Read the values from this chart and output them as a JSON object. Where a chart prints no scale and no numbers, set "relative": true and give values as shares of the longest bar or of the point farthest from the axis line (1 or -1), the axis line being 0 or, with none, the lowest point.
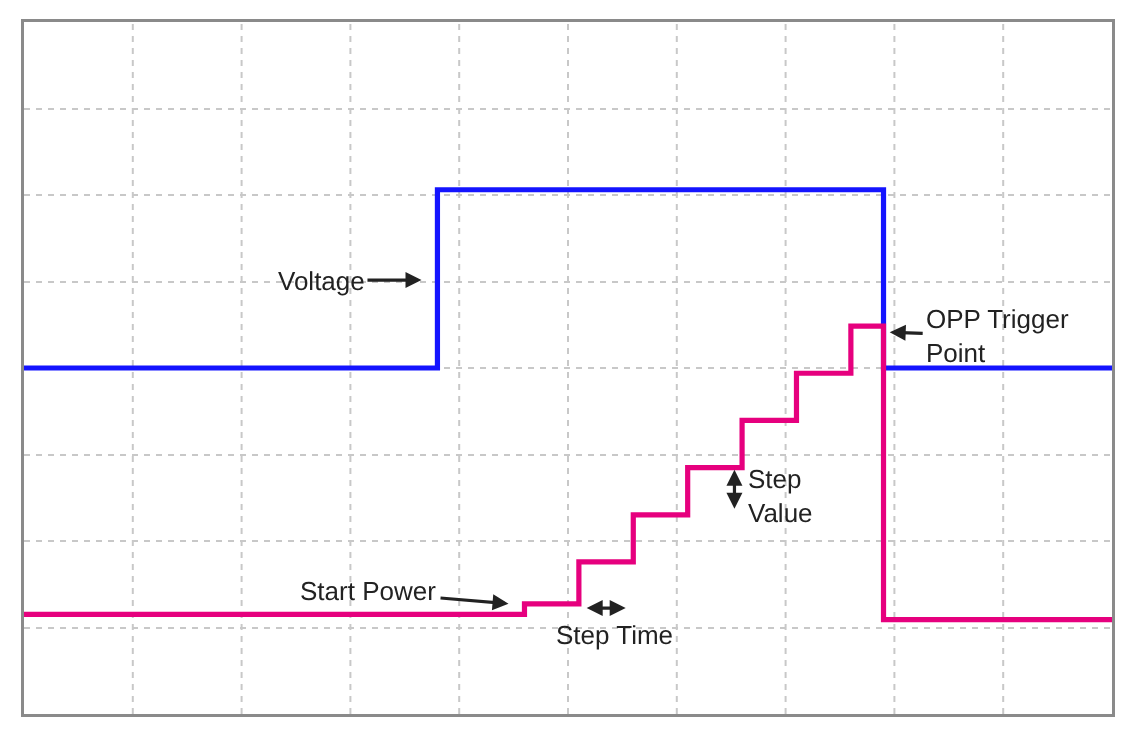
{
  "chart_data": {
    "type": "step",
    "relative": true,
    "categories": [
      null,
      null,
      null,
      null,
      null,
      null,
      null,
      null,
      null,
      null,
      null,
      null,
      null,
      null,
      null,
      null,
      null,
      null,
      null,
      null,
      null,
      null,
      null,
      null,
      null,
      null,
      null,
      null,
      null,
      null,
      null,
      null,
      null,
      null,
      null,
      null,
      null,
      null,
      null,
      null,
      null,
      null,
      null,
      null,
      null,
      null,
      null,
      null,
      null,
      null,
      null,
      null,
      null,
      null,
      null,
      null,
      null,
      null,
      null,
      null,
      null,
      null,
      null,
      null,
      null,
      null,
      null,
      null,
      null,
      null,
      null,
      null,
      null,
      null,
      null,
      null,
      null,
      null,
      null,
      null,
      null,
      null,
      null,
      null,
      null,
      null,
      null,
      null,
      null,
      null,
      null,
      null,
      null,
      null,
      null,
      null,
      null,
      null,
      null,
      null,
      null
    ],
    "grid": true,
    "marker": "none",
    "line_style": "solid",
    "series": [
      {
        "color": "#1414ff",
        "values": [
          0.66,
          0.66,
          0.66,
          0.66,
          0.66,
          0.66,
          0.66,
          0.66,
          0.66,
          0.66,
          0.66,
          0.66,
          0.66,
          0.66,
          0.66,
          0.66,
          0.66,
          0.66,
          0.66,
          0.66,
          0.66,
          0.66,
          0.66,
          0.66,
          0.66,
          0.66,
          0.66,
          0.66,
          0.66,
          0.66,
          0.66,
          0.66,
          0.66,
          0.66,
          0.66,
          0.66,
          0.66,
          0.66,
          1,
          1,
          1,
          1,
          1,
          1,
          1,
          1,
          1,
          1,
          1,
          1,
          1,
          1,
          1,
          1,
          1,
          1,
          1,
          1,
          1,
          1,
          1,
          1,
          1,
          1,
          1,
          1,
          1,
          1,
          1,
          1,
          1,
          1,
          1,
          1,
          1,
          1,
          1,
          1,
          1,
          0.66,
          0.66,
          0.66,
          0.66,
          0.66,
          0.66,
          0.66,
          0.66,
          0.66,
          0.66,
          0.66,
          0.66,
          0.66,
          0.66,
          0.66,
          0.66,
          0.66,
          0.66,
          0.66,
          0.66,
          0.66,
          0.66
        ]
      },
      {
        "color": "#e6007e",
        "values": [
          0.19,
          0.19,
          0.19,
          0.19,
          0.19,
          0.19,
          0.19,
          0.19,
          0.19,
          0.19,
          0.19,
          0.19,
          0.19,
          0.19,
          0.19,
          0.19,
          0.19,
          0.19,
          0.19,
          0.19,
          0.19,
          0.19,
          0.19,
          0.19,
          0.19,
          0.19,
          0.19,
          0.19,
          0.19,
          0.19,
          0.19,
          0.19,
          0.19,
          0.19,
          0.19,
          0.19,
          0.19,
          0.19,
          0.19,
          0.19,
          0.19,
          0.19,
          0.19,
          0.19,
          0.19,
          0.19,
          0.21,
          0.21,
          0.21,
          0.21,
          0.21,
          0.29,
          0.29,
          0.29,
          0.29,
          0.29,
          0.38,
          0.38,
          0.38,
          0.38,
          0.38,
          0.47,
          0.47,
          0.47,
          0.47,
          0.47,
          0.56,
          0.56,
          0.56,
          0.56,
          0.56,
          0.65,
          0.65,
          0.65,
          0.65,
          0.65,
          0.74,
          0.74,
          0.74,
          0.18,
          0.18,
          0.18,
          0.18,
          0.18,
          0.18,
          0.18,
          0.18,
          0.18,
          0.18,
          0.18,
          0.18,
          0.18,
          0.18,
          0.18,
          0.18,
          0.18,
          0.18,
          0.18,
          0.18,
          0.18,
          0.18
        ]
      }
    ],
    "annotations": [
      "Voltage",
      "Start Power",
      "Step Time",
      "Step\nValue",
      "OPP Trigger\nPoint"
    ]
  }
}
